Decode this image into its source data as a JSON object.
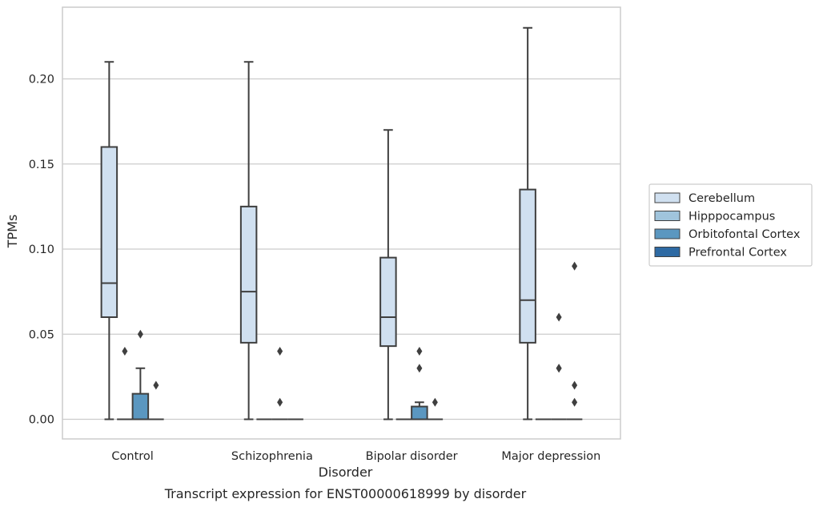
{
  "chart_data": {
    "type": "box",
    "caption": "Transcript expression for ENST00000618999 by disorder",
    "xlabel": "Disorder",
    "ylabel": "TPMs",
    "categories": [
      "Control",
      "Schizophrenia",
      "Bipolar disorder",
      "Major depression"
    ],
    "ylim": [
      -0.0115,
      0.2415
    ],
    "yticks": [
      0.0,
      0.05,
      0.1,
      0.15,
      0.2
    ],
    "ytick_labels": [
      "0.00",
      "0.05",
      "0.10",
      "0.15",
      "0.20"
    ],
    "grid": true,
    "legend_position": "right",
    "series": [
      {
        "name": "Cerebellum",
        "color": "#d0e0f0",
        "boxes": [
          {
            "q1": 0.06,
            "median": 0.08,
            "q3": 0.16,
            "whislo": 0.0,
            "whishi": 0.21,
            "fliers": []
          },
          {
            "q1": 0.045,
            "median": 0.075,
            "q3": 0.125,
            "whislo": 0.0,
            "whishi": 0.21,
            "fliers": []
          },
          {
            "q1": 0.043,
            "median": 0.06,
            "q3": 0.095,
            "whislo": 0.0,
            "whishi": 0.17,
            "fliers": []
          },
          {
            "q1": 0.045,
            "median": 0.07,
            "q3": 0.135,
            "whislo": 0.0,
            "whishi": 0.23,
            "fliers": []
          }
        ]
      },
      {
        "name": "Hipppocampus",
        "color": "#a0c4dc",
        "boxes": [
          {
            "q1": 0.0,
            "median": 0.0,
            "q3": 0.0,
            "whislo": 0.0,
            "whishi": 0.0,
            "fliers": [
              0.04
            ]
          },
          {
            "q1": 0.0,
            "median": 0.0,
            "q3": 0.0,
            "whislo": 0.0,
            "whishi": 0.0,
            "fliers": []
          },
          {
            "q1": 0.0,
            "median": 0.0,
            "q3": 0.0,
            "whislo": 0.0,
            "whishi": 0.0,
            "fliers": []
          },
          {
            "q1": 0.0,
            "median": 0.0,
            "q3": 0.0,
            "whislo": 0.0,
            "whishi": 0.0,
            "fliers": []
          }
        ]
      },
      {
        "name": "Orbitofontal Cortex",
        "color": "#5b97c0",
        "boxes": [
          {
            "q1": 0.0,
            "median": 0.0,
            "q3": 0.015,
            "whislo": 0.0,
            "whishi": 0.03,
            "fliers": [
              0.05
            ]
          },
          {
            "q1": 0.0,
            "median": 0.0,
            "q3": 0.0,
            "whislo": 0.0,
            "whishi": 0.0,
            "fliers": [
              0.04,
              0.01
            ]
          },
          {
            "q1": 0.0,
            "median": 0.0,
            "q3": 0.0075,
            "whislo": 0.0,
            "whishi": 0.01,
            "fliers": [
              0.04,
              0.03
            ]
          },
          {
            "q1": 0.0,
            "median": 0.0,
            "q3": 0.0,
            "whislo": 0.0,
            "whishi": 0.0,
            "fliers": [
              0.06,
              0.03,
              0.03
            ]
          }
        ]
      },
      {
        "name": "Prefrontal Cortex",
        "color": "#2e6aa3",
        "boxes": [
          {
            "q1": 0.0,
            "median": 0.0,
            "q3": 0.0,
            "whislo": 0.0,
            "whishi": 0.0,
            "fliers": [
              0.02
            ]
          },
          {
            "q1": 0.0,
            "median": 0.0,
            "q3": 0.0,
            "whislo": 0.0,
            "whishi": 0.0,
            "fliers": []
          },
          {
            "q1": 0.0,
            "median": 0.0,
            "q3": 0.0,
            "whislo": 0.0,
            "whishi": 0.0,
            "fliers": [
              0.01
            ]
          },
          {
            "q1": 0.0,
            "median": 0.0,
            "q3": 0.0,
            "whislo": 0.0,
            "whishi": 0.0,
            "fliers": [
              0.09,
              0.02,
              0.01
            ]
          }
        ]
      }
    ]
  }
}
